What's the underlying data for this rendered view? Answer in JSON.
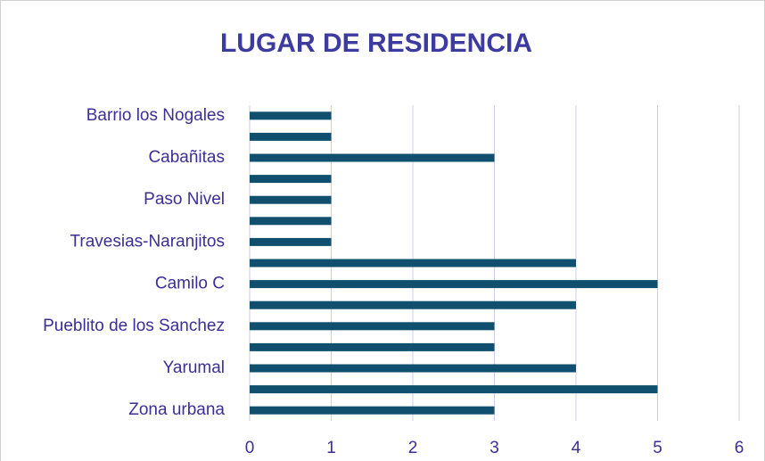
{
  "chart_data": {
    "type": "bar",
    "orientation": "horizontal",
    "title": "LUGAR DE RESIDENCIA",
    "categories": [
      "Barrio los Nogales",
      null,
      "Cabañitas",
      null,
      "Paso Nivel",
      null,
      "Travesias-Naranjitos",
      null,
      "Camilo C",
      null,
      "Pueblito de los Sanchez",
      null,
      "Yarumal",
      null,
      "Zona urbana"
    ],
    "values": [
      1,
      1,
      3,
      1,
      1,
      1,
      1,
      4,
      5,
      4,
      3,
      3,
      4,
      5,
      3
    ],
    "color": "#10506e",
    "xlim": [
      0,
      6
    ],
    "xticks": [
      0,
      1,
      2,
      3,
      4,
      5,
      6
    ],
    "grid": true
  }
}
